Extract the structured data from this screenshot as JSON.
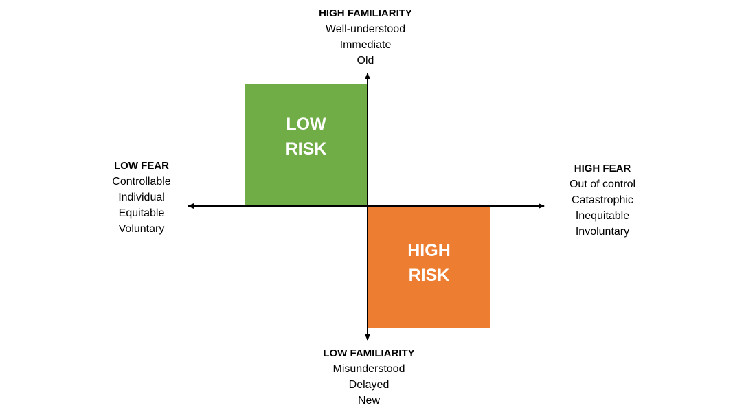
{
  "diagram": {
    "quadrants": {
      "low": {
        "lines": [
          "LOW",
          "RISK"
        ],
        "color": "#70ad47"
      },
      "high": {
        "lines": [
          "HIGH",
          "RISK"
        ],
        "color": "#ed7d31"
      }
    },
    "top": {
      "heading": "HIGH FAMILIARITY",
      "items": [
        "Well-understood",
        "Immediate",
        "Old"
      ]
    },
    "bottom": {
      "heading": "LOW FAMILIARITY",
      "items": [
        "Misunderstood",
        "Delayed",
        "New"
      ]
    },
    "left": {
      "heading": "LOW FEAR",
      "items": [
        "Controllable",
        "Individual",
        "Equitable",
        "Voluntary"
      ]
    },
    "right": {
      "heading": "HIGH FEAR",
      "items": [
        "Out of control",
        "Catastrophic",
        "Inequitable",
        "Involuntary"
      ]
    },
    "axis_color": "#000000"
  }
}
